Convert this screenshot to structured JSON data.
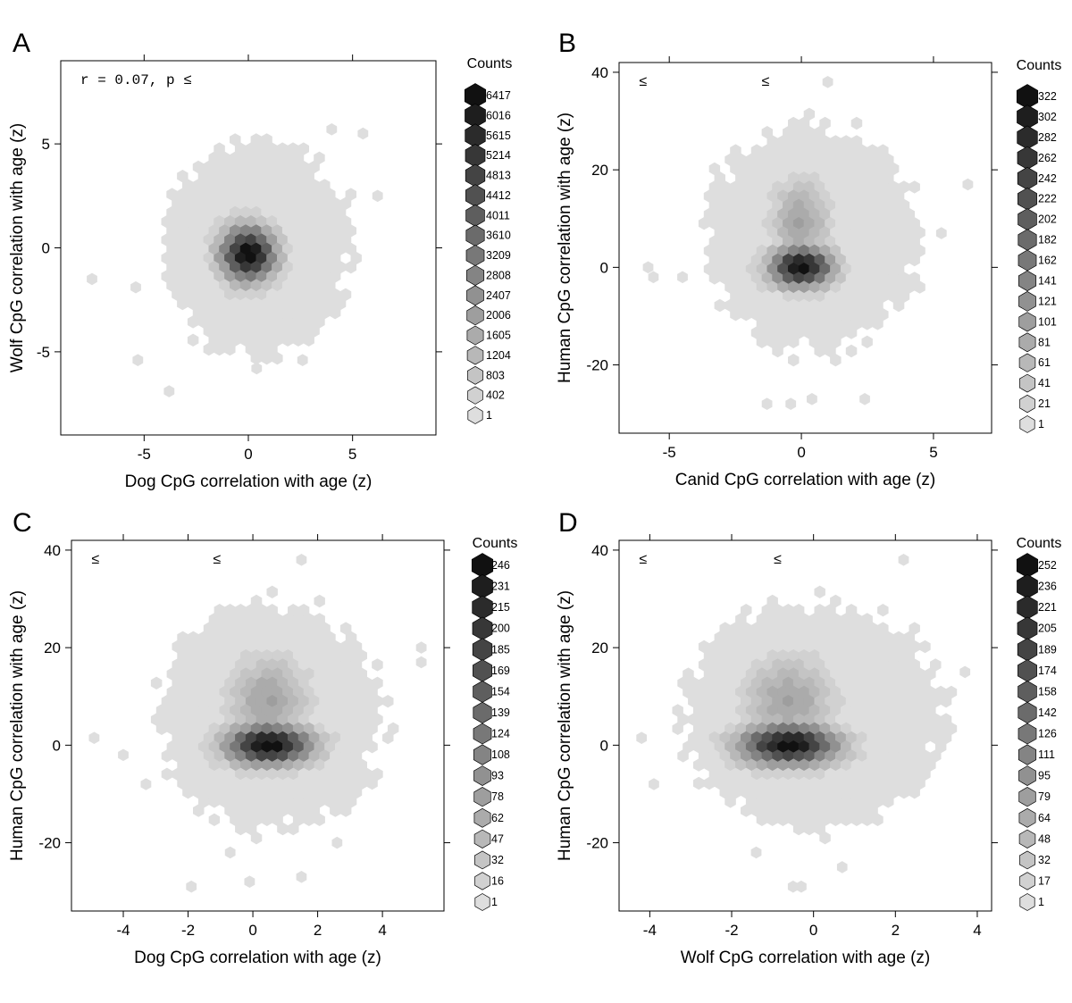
{
  "chart_data": [
    {
      "panel": "A",
      "type": "hexbin",
      "xlabel": "Dog CpG correlation with age (z)",
      "ylabel": "Wolf CpG correlation with age (z)",
      "xlim": [
        -9,
        9
      ],
      "ylim": [
        -9,
        9
      ],
      "xticks": [
        -5,
        0,
        5
      ],
      "yticks": [
        -5,
        0,
        5
      ],
      "annotation": "r = 0.07, p ≤",
      "annotation2": "",
      "legend_title": "Counts",
      "legend": [
        "6417",
        "6016",
        "5615",
        "5214",
        "4813",
        "4412",
        "4011",
        "3610",
        "3209",
        "2808",
        "2407",
        "2006",
        "1605",
        "1204",
        "803",
        "402",
        "1"
      ],
      "density": {
        "center": [
          0,
          -0.3
        ],
        "core_sd": [
          0.9,
          0.9
        ],
        "max_count": 6417,
        "envelope_x": [
          -4.2,
          5.2
        ],
        "envelope_y": [
          -5.5,
          5.3
        ],
        "outliers": [
          [
            -7.5,
            -1.5
          ],
          [
            -5.3,
            -5.4
          ],
          [
            -3.8,
            -6.9
          ],
          [
            5.5,
            5.5
          ],
          [
            6.2,
            2.5
          ],
          [
            4,
            5.7
          ],
          [
            -5.4,
            -1.9
          ],
          [
            2.6,
            -5.4
          ],
          [
            0.4,
            -5.8
          ]
        ]
      }
    },
    {
      "panel": "B",
      "type": "hexbin",
      "xlabel": "Canid CpG correlation with age (z)",
      "ylabel": "Human CpG correlation with age (z)",
      "xlim": [
        -6.9,
        7.2
      ],
      "ylim": [
        -34,
        42
      ],
      "xticks": [
        -5,
        0,
        5
      ],
      "yticks": [
        -20,
        0,
        20,
        40
      ],
      "annotation": "≤",
      "annotation2": "≤",
      "legend_title": "Counts",
      "legend": [
        "322",
        "302",
        "282",
        "262",
        "242",
        "222",
        "202",
        "182",
        "162",
        "141",
        "121",
        "101",
        "81",
        "61",
        "41",
        "21",
        "1"
      ],
      "density": {
        "center": [
          0,
          0
        ],
        "core_sd": [
          0.8,
          2.8
        ],
        "max_count": 322,
        "envelope_x": [
          -3.8,
          4.6
        ],
        "envelope_y": [
          -18,
          30
        ],
        "outliers": [
          [
            -5.8,
            0
          ],
          [
            -5.6,
            -2
          ],
          [
            -4.5,
            -2
          ],
          [
            6.3,
            17
          ],
          [
            5.3,
            7
          ],
          [
            1,
            38
          ],
          [
            -1.3,
            -28
          ],
          [
            -0.4,
            -28
          ],
          [
            0.4,
            -27
          ],
          [
            2.4,
            -27
          ]
        ]
      }
    },
    {
      "panel": "C",
      "type": "hexbin",
      "xlabel": "Dog CpG correlation with age (z)",
      "ylabel": "Human CpG correlation with age (z)",
      "xlim": [
        -5.6,
        5.9
      ],
      "ylim": [
        -34,
        42
      ],
      "xticks": [
        -4,
        -2,
        0,
        2,
        4
      ],
      "yticks": [
        -20,
        0,
        20,
        40
      ],
      "annotation": "≤",
      "annotation2": "≤",
      "legend_title": "Counts",
      "legend": [
        "246",
        "231",
        "215",
        "200",
        "185",
        "169",
        "154",
        "139",
        "124",
        "108",
        "93",
        "78",
        "62",
        "47",
        "32",
        "16",
        "1"
      ],
      "density": {
        "center": [
          0.5,
          0
        ],
        "core_sd": [
          0.9,
          2.8
        ],
        "max_count": 246,
        "envelope_x": [
          -3,
          4.2
        ],
        "envelope_y": [
          -18,
          30
        ],
        "outliers": [
          [
            -4.9,
            1.5
          ],
          [
            -4,
            -2
          ],
          [
            -3.3,
            -8
          ],
          [
            5.2,
            20
          ],
          [
            5.2,
            17
          ],
          [
            1.5,
            38
          ],
          [
            -1.9,
            -29
          ],
          [
            -0.1,
            -28
          ],
          [
            1.5,
            -27
          ],
          [
            -0.7,
            -22
          ],
          [
            2.6,
            -20
          ]
        ]
      }
    },
    {
      "panel": "D",
      "type": "hexbin",
      "xlabel": "Wolf CpG correlation with age (z)",
      "ylabel": "Human CpG correlation with age (z)",
      "xlim": [
        -4.75,
        4.35
      ],
      "ylim": [
        -34,
        42
      ],
      "xticks": [
        -4,
        -2,
        0,
        2,
        4
      ],
      "yticks": [
        -20,
        0,
        20,
        40
      ],
      "annotation": "≤",
      "annotation2": "≤",
      "legend_title": "Counts",
      "legend": [
        "252",
        "236",
        "221",
        "205",
        "189",
        "174",
        "158",
        "142",
        "126",
        "111",
        "95",
        "79",
        "64",
        "48",
        "32",
        "17",
        "1"
      ],
      "density": {
        "center": [
          -0.6,
          0
        ],
        "core_sd": [
          0.8,
          2.8
        ],
        "max_count": 252,
        "envelope_x": [
          -3.2,
          3.4
        ],
        "envelope_y": [
          -18,
          30
        ],
        "outliers": [
          [
            -4.2,
            1.5
          ],
          [
            -3.9,
            -8
          ],
          [
            2.2,
            38
          ],
          [
            3.7,
            15
          ],
          [
            -1.4,
            -22
          ],
          [
            -0.5,
            -29
          ],
          [
            -0.3,
            -29
          ],
          [
            0.7,
            -25
          ]
        ]
      }
    }
  ],
  "panel_labels": [
    "A",
    "B",
    "C",
    "D"
  ]
}
